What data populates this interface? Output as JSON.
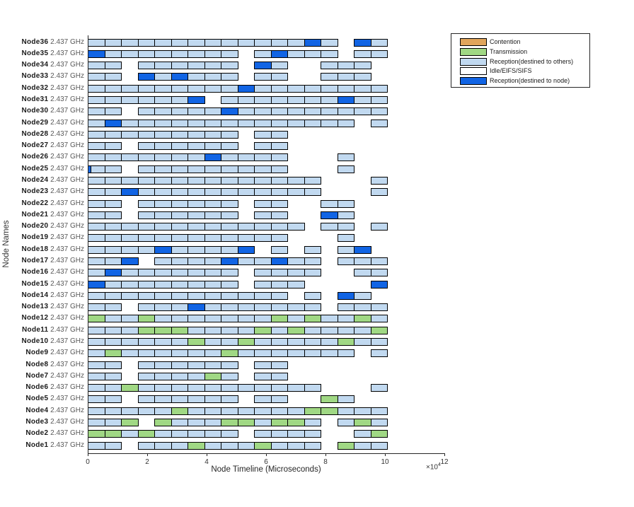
{
  "figure": {
    "ylabel": "Node Names",
    "xlabel": "Node Timeline (Microseconds)",
    "x_multiplier_base": "×10",
    "x_multiplier_exp": "4"
  },
  "legend": {
    "entries": [
      {
        "label": "Contention",
        "color": "#E0A55C"
      },
      {
        "label": "Transmission",
        "color": "#A0D884"
      },
      {
        "label": "Reception(destined to others)",
        "color": "#C1D9F0"
      },
      {
        "label": "Idle/EIFS/SIFS",
        "color": "#FFFFFF"
      },
      {
        "label": "Reception(destined to node)",
        "color": "#1164E4"
      }
    ]
  },
  "chart_data": {
    "type": "timeline",
    "title": "",
    "xlabel": "Node Timeline (Microseconds)",
    "ylabel": "Node Names",
    "x_ticks": [
      0,
      2,
      4,
      6,
      8,
      10,
      12
    ],
    "x_tick_multiplier": "×10^4",
    "xlim_microseconds": [
      0,
      120000
    ],
    "segment_unit_microseconds": 5600,
    "grid": false,
    "legend_position": "top-right",
    "colors": {
      "L": "#C1D9F0",
      "G": "#A0D884",
      "B": "#1164E4",
      "C": "#E0A55C",
      "I": "#FFFFFF"
    },
    "color_meaning": {
      "L": "Reception(destined to others)",
      "G": "Transmission",
      "B": "Reception(destined to node)",
      "C": "Contention",
      "I": "Idle/EIFS/SIFS"
    },
    "frequency_label": "2.437 GHz",
    "rows": [
      {
        "name": "Node36",
        "freq": "2.437 GHz",
        "segments": [
          [
            0,
            13,
            "L"
          ],
          [
            13,
            14,
            "B"
          ],
          [
            14,
            15,
            "L"
          ],
          [
            16,
            17,
            "B"
          ],
          [
            17,
            18,
            "L"
          ]
        ]
      },
      {
        "name": "Node35",
        "freq": "2.437 GHz",
        "segments": [
          [
            0,
            1,
            "B"
          ],
          [
            1,
            9,
            "L"
          ],
          [
            10,
            11,
            "L"
          ],
          [
            11,
            12,
            "B"
          ],
          [
            12,
            15,
            "L"
          ],
          [
            16,
            18,
            "L"
          ]
        ]
      },
      {
        "name": "Node34",
        "freq": "2.437 GHz",
        "segments": [
          [
            0,
            2,
            "L"
          ],
          [
            3,
            9,
            "L"
          ],
          [
            10,
            11,
            "B"
          ],
          [
            11,
            12,
            "L"
          ],
          [
            14,
            17,
            "L"
          ]
        ]
      },
      {
        "name": "Node33",
        "freq": "2.437 GHz",
        "segments": [
          [
            0,
            2,
            "L"
          ],
          [
            3,
            4,
            "B"
          ],
          [
            4,
            5,
            "L"
          ],
          [
            5,
            6,
            "B"
          ],
          [
            6,
            9,
            "L"
          ],
          [
            10,
            12,
            "L"
          ],
          [
            14,
            17,
            "L"
          ]
        ]
      },
      {
        "name": "Node32",
        "freq": "2.437 GHz",
        "segments": [
          [
            0,
            9,
            "L"
          ],
          [
            9,
            10,
            "B"
          ],
          [
            10,
            18,
            "L"
          ]
        ]
      },
      {
        "name": "Node31",
        "freq": "2.437 GHz",
        "segments": [
          [
            0,
            6,
            "L"
          ],
          [
            6,
            7,
            "B"
          ],
          [
            8,
            15,
            "L"
          ],
          [
            15,
            16,
            "B"
          ],
          [
            16,
            18,
            "L"
          ]
        ]
      },
      {
        "name": "Node30",
        "freq": "2.437 GHz",
        "segments": [
          [
            0,
            2,
            "L"
          ],
          [
            3,
            8,
            "L"
          ],
          [
            8,
            9,
            "B"
          ],
          [
            9,
            18,
            "L"
          ]
        ]
      },
      {
        "name": "Node29",
        "freq": "2.437 GHz",
        "segments": [
          [
            0,
            1,
            "L"
          ],
          [
            1,
            2,
            "B"
          ],
          [
            2,
            16,
            "L"
          ],
          [
            17,
            18,
            "L"
          ]
        ]
      },
      {
        "name": "Node28",
        "freq": "2.437 GHz",
        "segments": [
          [
            0,
            9,
            "L"
          ],
          [
            10,
            12,
            "L"
          ]
        ]
      },
      {
        "name": "Node27",
        "freq": "2.437 GHz",
        "segments": [
          [
            0,
            2,
            "L"
          ],
          [
            3,
            9,
            "L"
          ],
          [
            10,
            12,
            "L"
          ]
        ]
      },
      {
        "name": "Node26",
        "freq": "2.437 GHz",
        "segments": [
          [
            0,
            7,
            "L"
          ],
          [
            7,
            8,
            "B"
          ],
          [
            8,
            12,
            "L"
          ],
          [
            15,
            16,
            "L"
          ]
        ]
      },
      {
        "name": "Node25",
        "freq": "2.437 GHz",
        "segments": [
          [
            0,
            0.15,
            "B"
          ],
          [
            0.15,
            2,
            "L"
          ],
          [
            3,
            12,
            "L"
          ],
          [
            15,
            16,
            "L"
          ]
        ]
      },
      {
        "name": "Node24",
        "freq": "2.437 GHz",
        "segments": [
          [
            0,
            14,
            "L"
          ],
          [
            17,
            18,
            "L"
          ]
        ]
      },
      {
        "name": "Node23",
        "freq": "2.437 GHz",
        "segments": [
          [
            0,
            2,
            "L"
          ],
          [
            2,
            3,
            "B"
          ],
          [
            3,
            14,
            "L"
          ],
          [
            17,
            18,
            "L"
          ]
        ]
      },
      {
        "name": "Node22",
        "freq": "2.437 GHz",
        "segments": [
          [
            0,
            2,
            "L"
          ],
          [
            3,
            9,
            "L"
          ],
          [
            10,
            12,
            "L"
          ],
          [
            14,
            16,
            "L"
          ]
        ]
      },
      {
        "name": "Node21",
        "freq": "2.437 GHz",
        "segments": [
          [
            0,
            2,
            "L"
          ],
          [
            3,
            9,
            "L"
          ],
          [
            10,
            12,
            "L"
          ],
          [
            14,
            15,
            "B"
          ],
          [
            15,
            16,
            "L"
          ]
        ]
      },
      {
        "name": "Node20",
        "freq": "2.437 GHz",
        "segments": [
          [
            0,
            13,
            "L"
          ],
          [
            14,
            16,
            "L"
          ],
          [
            17,
            18,
            "L"
          ]
        ]
      },
      {
        "name": "Node19",
        "freq": "2.437 GHz",
        "segments": [
          [
            0,
            12,
            "L"
          ],
          [
            15,
            16,
            "L"
          ]
        ]
      },
      {
        "name": "Node18",
        "freq": "2.437 GHz",
        "segments": [
          [
            0,
            4,
            "L"
          ],
          [
            4,
            5,
            "B"
          ],
          [
            5,
            9,
            "L"
          ],
          [
            9,
            10,
            "B"
          ],
          [
            11,
            12,
            "L"
          ],
          [
            13,
            14,
            "L"
          ],
          [
            15,
            16,
            "L"
          ],
          [
            16,
            17,
            "B"
          ]
        ]
      },
      {
        "name": "Node17",
        "freq": "2.437 GHz",
        "segments": [
          [
            0,
            2,
            "L"
          ],
          [
            2,
            3,
            "B"
          ],
          [
            4,
            8,
            "L"
          ],
          [
            8,
            9,
            "B"
          ],
          [
            9,
            11,
            "L"
          ],
          [
            11,
            12,
            "B"
          ],
          [
            12,
            14,
            "L"
          ],
          [
            15,
            18,
            "L"
          ]
        ]
      },
      {
        "name": "Node16",
        "freq": "2.437 GHz",
        "segments": [
          [
            0,
            1,
            "L"
          ],
          [
            1,
            2,
            "B"
          ],
          [
            2,
            9,
            "L"
          ],
          [
            10,
            14,
            "L"
          ],
          [
            16,
            18,
            "L"
          ]
        ]
      },
      {
        "name": "Node15",
        "freq": "2.437 GHz",
        "segments": [
          [
            0,
            1,
            "B"
          ],
          [
            1,
            9,
            "L"
          ],
          [
            10,
            13,
            "L"
          ],
          [
            17,
            18,
            "B"
          ]
        ]
      },
      {
        "name": "Node14",
        "freq": "2.437 GHz",
        "segments": [
          [
            0,
            12,
            "L"
          ],
          [
            13,
            14,
            "L"
          ],
          [
            15,
            16,
            "B"
          ],
          [
            16,
            17,
            "L"
          ]
        ]
      },
      {
        "name": "Node13",
        "freq": "2.437 GHz",
        "segments": [
          [
            0,
            2,
            "L"
          ],
          [
            3,
            6,
            "L"
          ],
          [
            6,
            7,
            "B"
          ],
          [
            7,
            14,
            "L"
          ],
          [
            15,
            18,
            "L"
          ]
        ]
      },
      {
        "name": "Node12",
        "freq": "2.437 GHz",
        "segments": [
          [
            0,
            1,
            "G"
          ],
          [
            1,
            3,
            "L"
          ],
          [
            3,
            4,
            "G"
          ],
          [
            4,
            11,
            "L"
          ],
          [
            11,
            12,
            "G"
          ],
          [
            12,
            13,
            "L"
          ],
          [
            13,
            14,
            "G"
          ],
          [
            14,
            16,
            "L"
          ],
          [
            16,
            17,
            "G"
          ],
          [
            17,
            18,
            "L"
          ]
        ]
      },
      {
        "name": "Node11",
        "freq": "2.437 GHz",
        "segments": [
          [
            0,
            3,
            "L"
          ],
          [
            3,
            6,
            "G"
          ],
          [
            6,
            10,
            "L"
          ],
          [
            10,
            11,
            "G"
          ],
          [
            11,
            12,
            "L"
          ],
          [
            12,
            13,
            "G"
          ],
          [
            13,
            17,
            "L"
          ],
          [
            17,
            18,
            "G"
          ]
        ]
      },
      {
        "name": "Node10",
        "freq": "2.437 GHz",
        "segments": [
          [
            0,
            6,
            "L"
          ],
          [
            6,
            7,
            "G"
          ],
          [
            7,
            9,
            "L"
          ],
          [
            9,
            10,
            "G"
          ],
          [
            10,
            15,
            "L"
          ],
          [
            15,
            16,
            "G"
          ],
          [
            16,
            18,
            "L"
          ]
        ]
      },
      {
        "name": "Node9",
        "freq": "2.437 GHz",
        "segments": [
          [
            0,
            1,
            "L"
          ],
          [
            1,
            2,
            "G"
          ],
          [
            2,
            8,
            "L"
          ],
          [
            8,
            9,
            "G"
          ],
          [
            9,
            16,
            "L"
          ],
          [
            17,
            18,
            "L"
          ]
        ]
      },
      {
        "name": "Node8",
        "freq": "2.437 GHz",
        "segments": [
          [
            0,
            2,
            "L"
          ],
          [
            3,
            9,
            "L"
          ],
          [
            10,
            12,
            "L"
          ]
        ]
      },
      {
        "name": "Node7",
        "freq": "2.437 GHz",
        "segments": [
          [
            0,
            2,
            "L"
          ],
          [
            3,
            7,
            "L"
          ],
          [
            7,
            8,
            "G"
          ],
          [
            8,
            9,
            "L"
          ],
          [
            10,
            12,
            "L"
          ]
        ]
      },
      {
        "name": "Node6",
        "freq": "2.437 GHz",
        "segments": [
          [
            0,
            2,
            "L"
          ],
          [
            2,
            3,
            "G"
          ],
          [
            3,
            14,
            "L"
          ],
          [
            17,
            18,
            "L"
          ]
        ]
      },
      {
        "name": "Node5",
        "freq": "2.437 GHz",
        "segments": [
          [
            0,
            2,
            "L"
          ],
          [
            3,
            9,
            "L"
          ],
          [
            10,
            12,
            "L"
          ],
          [
            14,
            15,
            "G"
          ],
          [
            15,
            16,
            "L"
          ]
        ]
      },
      {
        "name": "Node4",
        "freq": "2.437 GHz",
        "segments": [
          [
            0,
            5,
            "L"
          ],
          [
            5,
            6,
            "G"
          ],
          [
            6,
            13,
            "L"
          ],
          [
            13,
            15,
            "G"
          ],
          [
            15,
            18,
            "L"
          ]
        ]
      },
      {
        "name": "Node3",
        "freq": "2.437 GHz",
        "segments": [
          [
            0,
            2,
            "L"
          ],
          [
            2,
            3,
            "G"
          ],
          [
            4,
            5,
            "G"
          ],
          [
            5,
            8,
            "L"
          ],
          [
            8,
            10,
            "G"
          ],
          [
            10,
            11,
            "L"
          ],
          [
            11,
            13,
            "G"
          ],
          [
            13,
            14,
            "L"
          ],
          [
            15,
            16,
            "L"
          ],
          [
            16,
            17,
            "G"
          ],
          [
            17,
            18,
            "L"
          ]
        ]
      },
      {
        "name": "Node2",
        "freq": "2.437 GHz",
        "segments": [
          [
            0,
            2,
            "G"
          ],
          [
            2,
            3,
            "L"
          ],
          [
            3,
            4,
            "G"
          ],
          [
            4,
            9,
            "L"
          ],
          [
            10,
            14,
            "L"
          ],
          [
            16,
            17,
            "L"
          ],
          [
            17,
            18,
            "G"
          ]
        ]
      },
      {
        "name": "Node1",
        "freq": "2.437 GHz",
        "segments": [
          [
            0,
            2,
            "L"
          ],
          [
            3,
            6,
            "L"
          ],
          [
            6,
            7,
            "G"
          ],
          [
            7,
            10,
            "L"
          ],
          [
            10,
            11,
            "G"
          ],
          [
            11,
            14,
            "L"
          ],
          [
            15,
            16,
            "G"
          ],
          [
            16,
            18,
            "L"
          ]
        ]
      }
    ]
  }
}
